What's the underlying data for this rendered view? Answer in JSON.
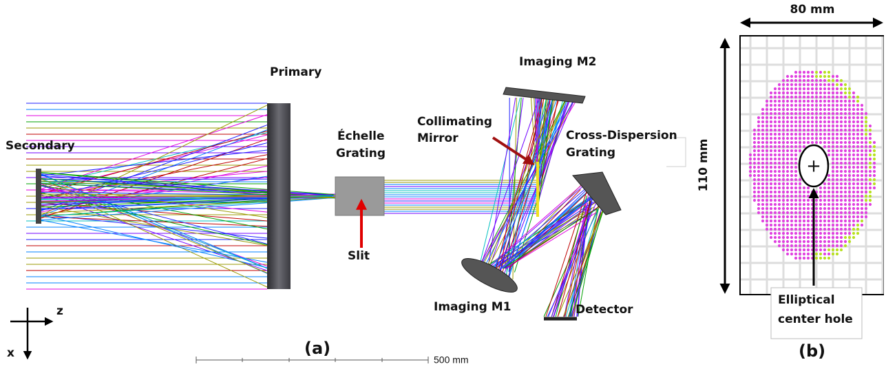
{
  "panel_a": {
    "primary": "Primary",
    "secondary": "Secondary",
    "echelle_grating": [
      "Échelle",
      "Grating"
    ],
    "collimating_mirror": [
      "Collimating",
      "Mirror"
    ],
    "imaging_m2": "Imaging M2",
    "cross_dispersion_grating": [
      "Cross-Dispersion",
      "Grating"
    ],
    "slit": "Slit",
    "imaging_m1": "Imaging M1",
    "detector": "Detector",
    "axis_z": "z",
    "axis_x": "x",
    "caption": "(a)",
    "scale_bar": "500 mm"
  },
  "panel_b": {
    "width": "80 mm",
    "height": "110 mm",
    "center_mark": "+",
    "hole_label": [
      "Elliptical",
      "center hole"
    ],
    "caption": "(b)"
  }
}
